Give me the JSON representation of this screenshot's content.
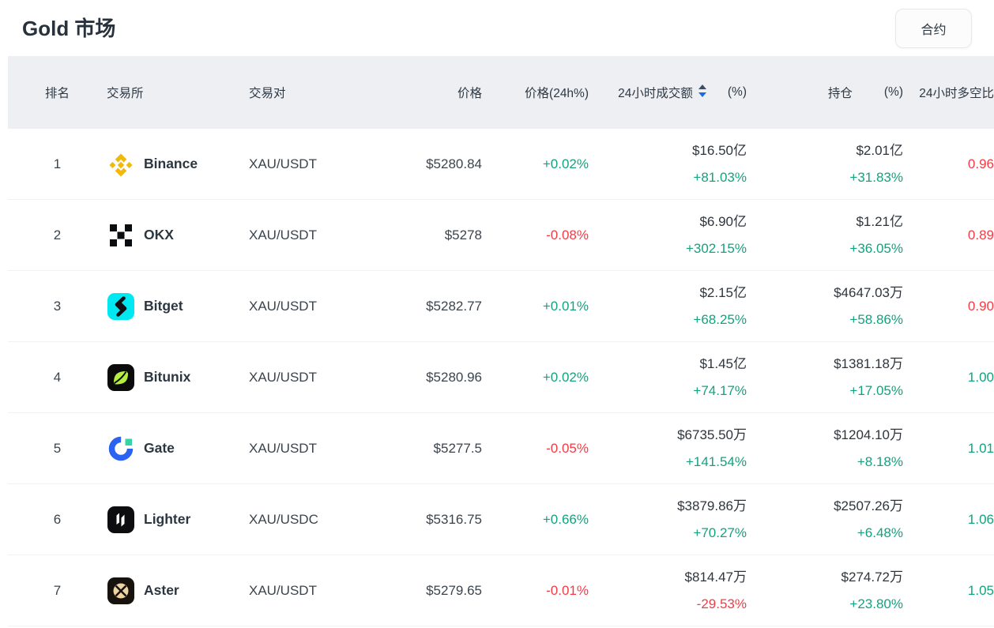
{
  "page": {
    "title": "Gold 市场",
    "contract_button_label": "合约"
  },
  "colors": {
    "up_green": "#14a27f",
    "down_red": "#f23c45",
    "header_bg": "#edeff2",
    "value_text": "#2e353d",
    "sort_active_blue": "#1b6ce0",
    "binance_gold": "#F0B90B",
    "okx_black": "#0b0e11",
    "bitget_cyan": "#00e9f2",
    "bitunix_lime": "#b5ef3f",
    "gate_blue": "#2a62f2",
    "gate_green": "#32d5a4",
    "lighter_black": "#0d0d0f",
    "aster_tan": "#f0d3a2"
  },
  "table": {
    "headers": {
      "rank": "排名",
      "exchange": "交易所",
      "pair": "交易对",
      "price": "价格",
      "change": "价格(24h%)",
      "volume": "24小时成交额",
      "volume_pct": "(%)",
      "oi": "持仓",
      "oi_pct": "(%)",
      "long_short": "24小时多空比"
    },
    "sort": {
      "column": "24小时成交额",
      "direction": "desc"
    },
    "rows": [
      {
        "rank": "1",
        "exchange": "Binance",
        "icon": "binance",
        "pair": "XAU/USDT",
        "price": "$5280.84",
        "change": "+0.02%",
        "change_dir": "up",
        "volume": "$16.50亿",
        "volume_pct": "+81.03%",
        "volume_pct_dir": "up",
        "oi": "$2.01亿",
        "oi_pct": "+31.83%",
        "oi_pct_dir": "up",
        "long_short": "0.96",
        "long_short_dir": "down"
      },
      {
        "rank": "2",
        "exchange": "OKX",
        "icon": "okx",
        "pair": "XAU/USDT",
        "price": "$5278",
        "change": "-0.08%",
        "change_dir": "down",
        "volume": "$6.90亿",
        "volume_pct": "+302.15%",
        "volume_pct_dir": "up",
        "oi": "$1.21亿",
        "oi_pct": "+36.05%",
        "oi_pct_dir": "up",
        "long_short": "0.89",
        "long_short_dir": "down"
      },
      {
        "rank": "3",
        "exchange": "Bitget",
        "icon": "bitget",
        "pair": "XAU/USDT",
        "price": "$5282.77",
        "change": "+0.01%",
        "change_dir": "up",
        "volume": "$2.15亿",
        "volume_pct": "+68.25%",
        "volume_pct_dir": "up",
        "oi": "$4647.03万",
        "oi_pct": "+58.86%",
        "oi_pct_dir": "up",
        "long_short": "0.90",
        "long_short_dir": "down"
      },
      {
        "rank": "4",
        "exchange": "Bitunix",
        "icon": "bitunix",
        "pair": "XAU/USDT",
        "price": "$5280.96",
        "change": "+0.02%",
        "change_dir": "up",
        "volume": "$1.45亿",
        "volume_pct": "+74.17%",
        "volume_pct_dir": "up",
        "oi": "$1381.18万",
        "oi_pct": "+17.05%",
        "oi_pct_dir": "up",
        "long_short": "1.00",
        "long_short_dir": "up"
      },
      {
        "rank": "5",
        "exchange": "Gate",
        "icon": "gate",
        "pair": "XAU/USDT",
        "price": "$5277.5",
        "change": "-0.05%",
        "change_dir": "down",
        "volume": "$6735.50万",
        "volume_pct": "+141.54%",
        "volume_pct_dir": "up",
        "oi": "$1204.10万",
        "oi_pct": "+8.18%",
        "oi_pct_dir": "up",
        "long_short": "1.01",
        "long_short_dir": "up"
      },
      {
        "rank": "6",
        "exchange": "Lighter",
        "icon": "lighter",
        "pair": "XAU/USDC",
        "price": "$5316.75",
        "change": "+0.66%",
        "change_dir": "up",
        "volume": "$3879.86万",
        "volume_pct": "+70.27%",
        "volume_pct_dir": "up",
        "oi": "$2507.26万",
        "oi_pct": "+6.48%",
        "oi_pct_dir": "up",
        "long_short": "1.06",
        "long_short_dir": "up"
      },
      {
        "rank": "7",
        "exchange": "Aster",
        "icon": "aster",
        "pair": "XAU/USDT",
        "price": "$5279.65",
        "change": "-0.01%",
        "change_dir": "down",
        "volume": "$814.47万",
        "volume_pct": "-29.53%",
        "volume_pct_dir": "down",
        "oi": "$274.72万",
        "oi_pct": "+23.80%",
        "oi_pct_dir": "up",
        "long_short": "1.05",
        "long_short_dir": "up"
      }
    ]
  }
}
